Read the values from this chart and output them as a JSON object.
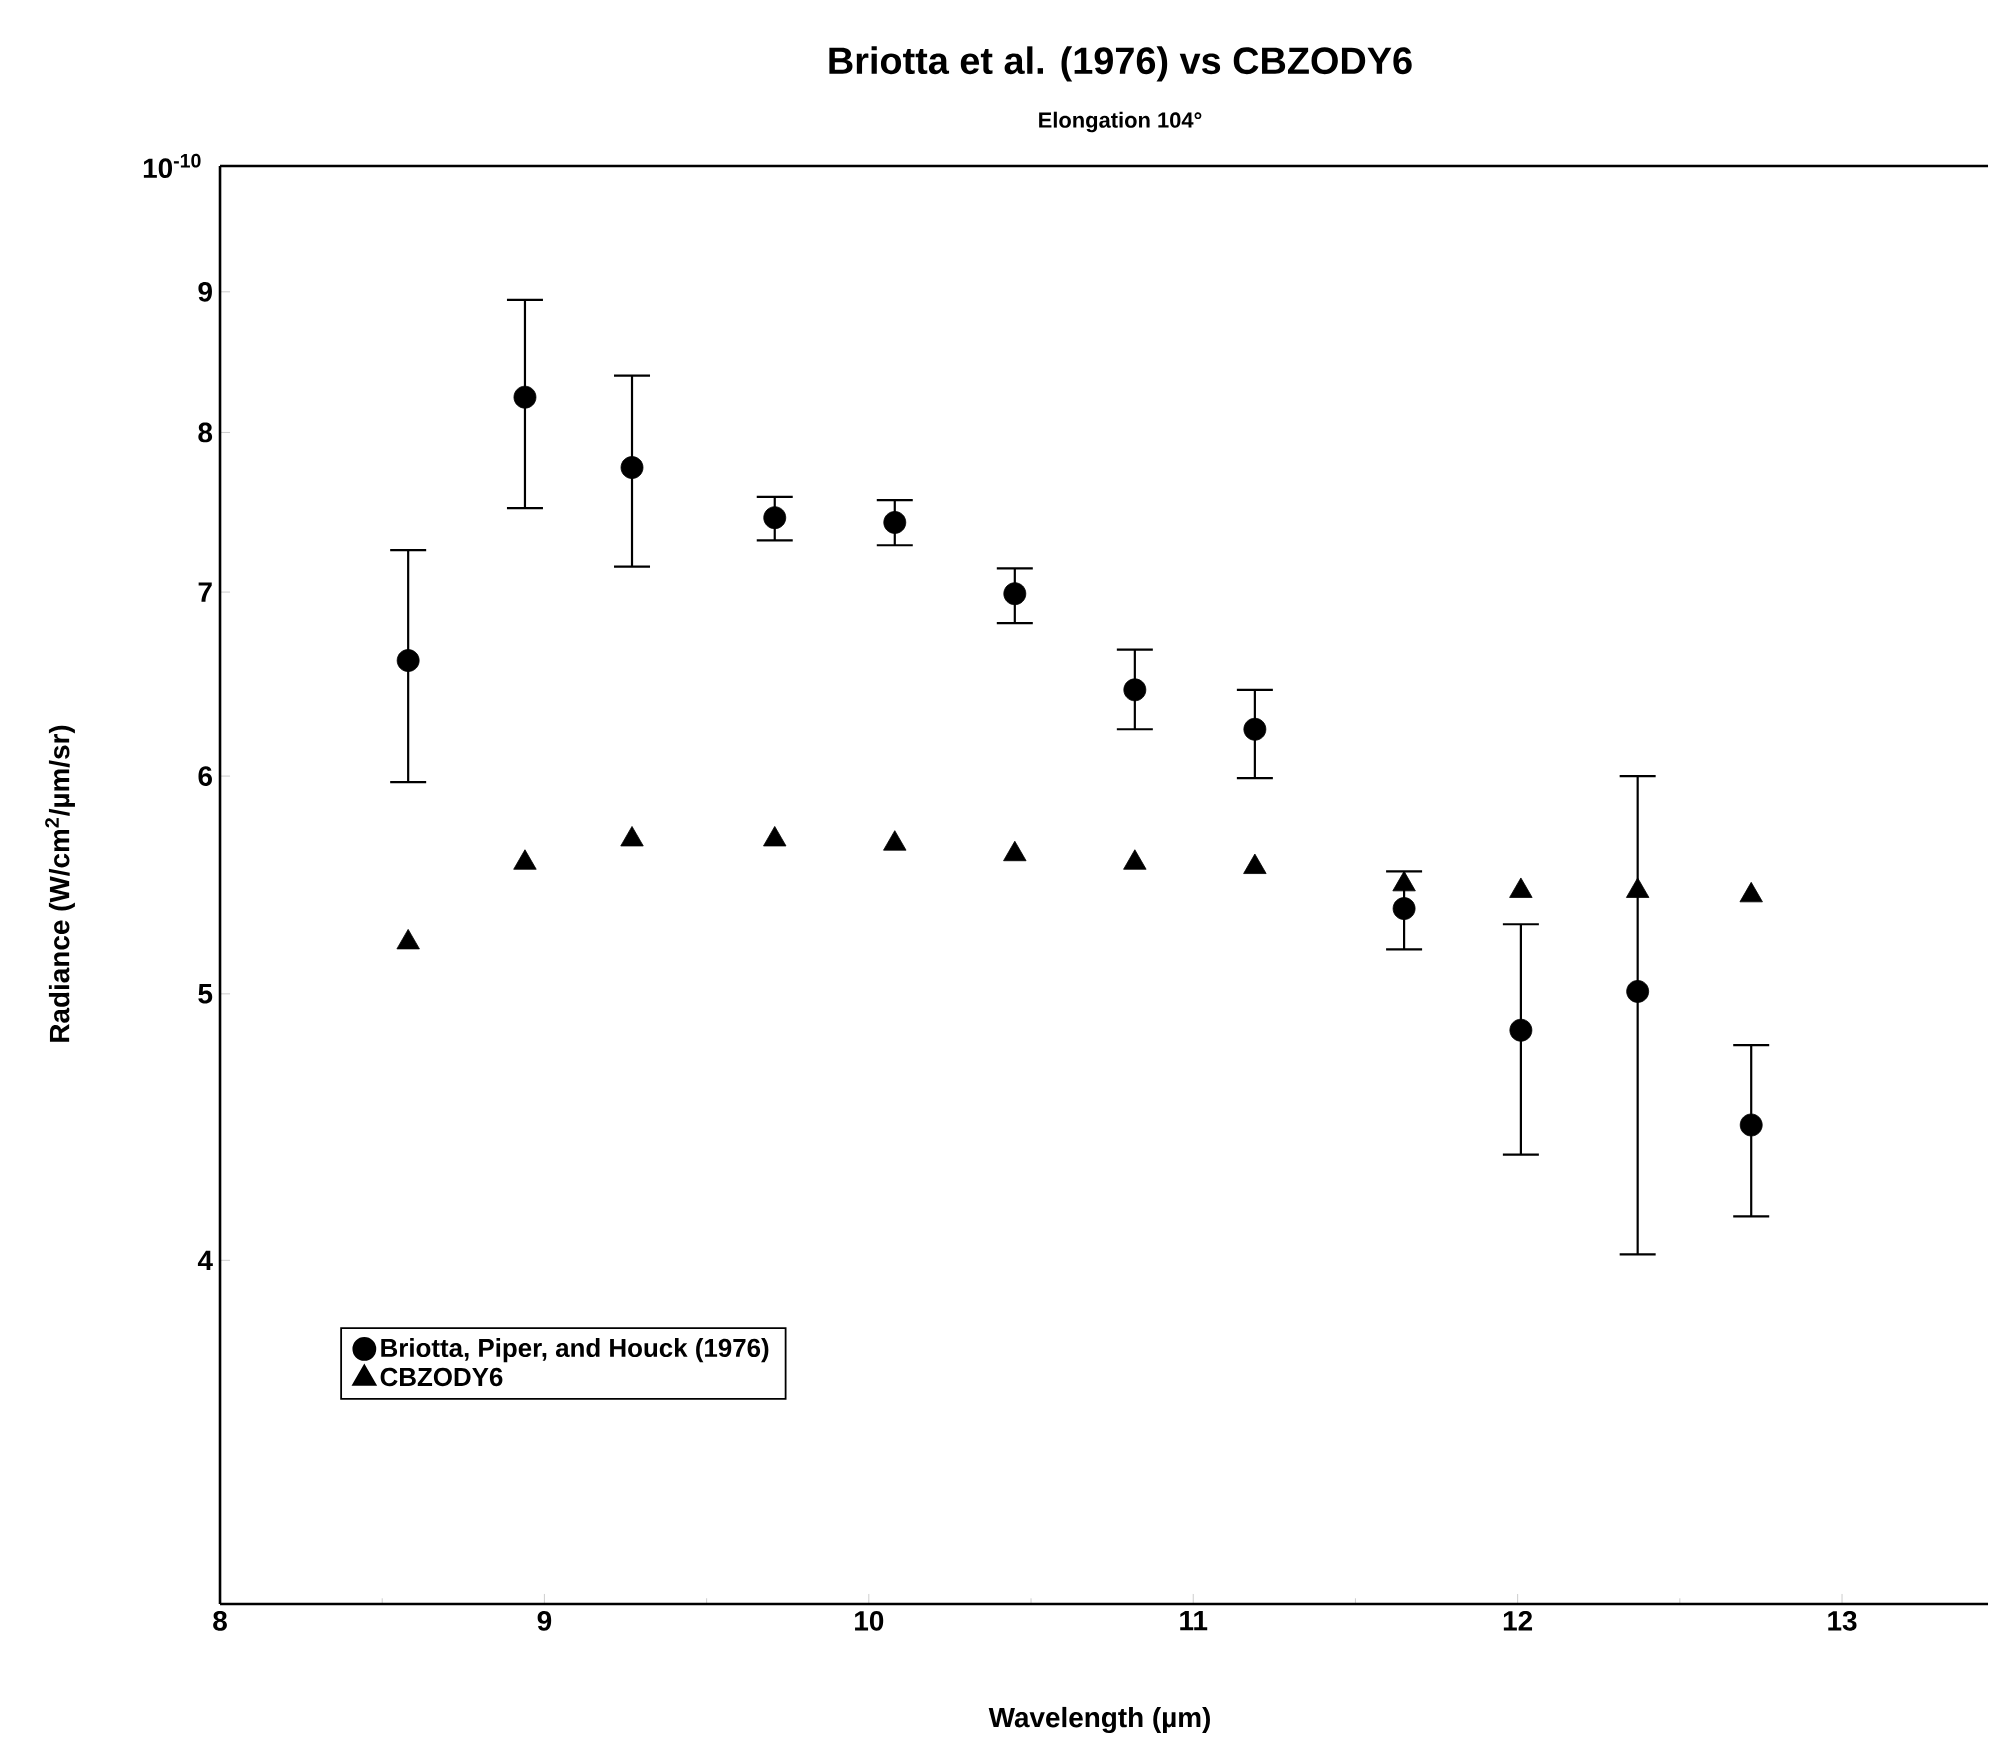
{
  "chart_data": {
    "type": "scatter",
    "title": "Briotta et al. (1976) vs CBZODY6",
    "subtitle": "Elongation 104°",
    "xlabel": "Wavelength (µm)",
    "ylabel": "Radiance (W/cm$^{2}$/µm/sr)",
    "log": "y",
    "legend": "bottom left",
    "grid": false,
    "xlim": [
      8,
      13.45
    ],
    "xticks": [
      8,
      9,
      10,
      11,
      12,
      13
    ],
    "ylim": [
      3,
      10
    ],
    "yticks": [
      4,
      5,
      6,
      7,
      8,
      9,
      {
        "value": 10,
        "label": null
      }
    ],
    "annotations": [
      "10$^{-10}$"
    ],
    "series": [
      {
        "name": "Briotta, Piper, and Houck (1976)",
        "color": "#000000",
        "marker": "circle",
        "x": [
          8.58,
          8.94,
          9.27,
          9.71,
          10.08,
          10.45,
          10.82,
          11.19,
          11.65,
          12.01,
          12.37,
          12.72
        ],
        "values": [
          6.61,
          8.24,
          7.77,
          7.45,
          7.42,
          6.99,
          6.45,
          6.24,
          5.37,
          4.85,
          5.01,
          4.48
        ],
        "errors": [
          [
            5.97,
            7.25
          ],
          [
            7.51,
            8.94
          ],
          [
            7.15,
            8.39
          ],
          [
            7.31,
            7.58
          ],
          [
            7.28,
            7.56
          ],
          [
            6.82,
            7.14
          ],
          [
            6.24,
            6.67
          ],
          [
            5.99,
            6.45
          ],
          [
            5.19,
            5.54
          ],
          [
            4.37,
            5.3
          ],
          [
            4.02,
            6.0
          ],
          [
            4.15,
            4.79
          ]
        ]
      },
      {
        "name": "CBZODY6",
        "color": "#000000",
        "marker": "triangle",
        "x": [
          8.58,
          8.94,
          9.27,
          9.71,
          10.08,
          10.45,
          10.82,
          11.19,
          11.65,
          12.01,
          12.37,
          12.72
        ],
        "values": [
          5.22,
          5.58,
          5.69,
          5.69,
          5.67,
          5.62,
          5.58,
          5.56,
          5.48,
          5.45,
          5.45,
          5.43
        ]
      }
    ]
  }
}
